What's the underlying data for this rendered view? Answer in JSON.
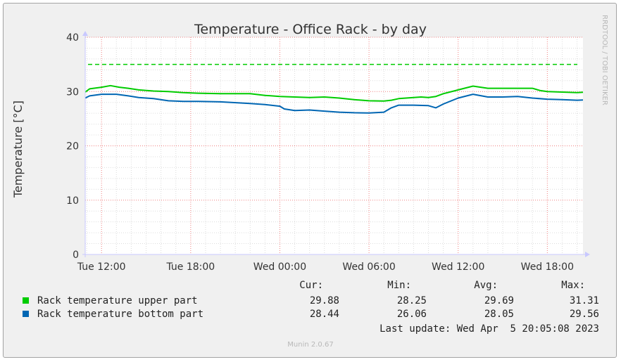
{
  "chart_data": {
    "type": "line",
    "title": "Temperature - Office Rack - by day",
    "ylabel": "Temperature [°C]",
    "xlabel": "",
    "ylim": [
      0,
      40
    ],
    "yticks": [
      0,
      10,
      20,
      30,
      40
    ],
    "xticks": [
      "Tue 12:00",
      "Tue 18:00",
      "Wed 00:00",
      "Wed 06:00",
      "Wed 12:00",
      "Wed 18:00"
    ],
    "x_hours": [
      0,
      6,
      12,
      18,
      24,
      30
    ],
    "xlim_hours": [
      -1.1,
      32.4
    ],
    "grid": true,
    "threshold": {
      "value": 35,
      "color": "#00cc00",
      "style": "dashed"
    },
    "series": [
      {
        "name": "Rack temperature upper part",
        "color": "#00cc00",
        "x": [
          -1.1,
          -0.8,
          0,
          0.6,
          1.2,
          1.8,
          2.5,
          3.5,
          4.5,
          5.5,
          6.5,
          8,
          10,
          11,
          12,
          13,
          14,
          15,
          16,
          17,
          18,
          19,
          19.5,
          20,
          21,
          21.5,
          22,
          22.5,
          23,
          24,
          25,
          26,
          27,
          28,
          29,
          29.5,
          30,
          31,
          32,
          32.4
        ],
        "values": [
          29.9,
          30.5,
          30.8,
          31.1,
          30.8,
          30.6,
          30.3,
          30.1,
          30.0,
          29.8,
          29.7,
          29.6,
          29.6,
          29.3,
          29.1,
          29.0,
          28.9,
          29.0,
          28.8,
          28.5,
          28.3,
          28.25,
          28.4,
          28.7,
          28.9,
          29.0,
          28.9,
          29.1,
          29.6,
          30.3,
          31.0,
          30.6,
          30.6,
          30.6,
          30.6,
          30.2,
          30.0,
          29.9,
          29.8,
          29.88
        ]
      },
      {
        "name": "Rack temperature bottom part",
        "color": "#0066b3",
        "x": [
          -1.1,
          -0.8,
          0,
          1,
          1.8,
          2.5,
          3.5,
          4.5,
          5.5,
          6.5,
          8,
          10,
          11,
          12,
          12.3,
          13,
          14,
          15,
          16,
          17,
          18,
          19,
          19.5,
          20,
          21,
          22,
          22.5,
          23,
          24,
          25,
          26,
          27,
          28,
          29,
          30,
          31,
          32,
          32.4
        ],
        "values": [
          28.8,
          29.2,
          29.5,
          29.5,
          29.2,
          28.9,
          28.7,
          28.3,
          28.2,
          28.2,
          28.1,
          27.8,
          27.6,
          27.3,
          26.8,
          26.5,
          26.6,
          26.4,
          26.2,
          26.1,
          26.06,
          26.2,
          27.0,
          27.5,
          27.5,
          27.4,
          27.0,
          27.7,
          28.8,
          29.5,
          29.0,
          29.0,
          29.1,
          28.8,
          28.6,
          28.5,
          28.4,
          28.44
        ]
      }
    ]
  },
  "legend": {
    "headers": [
      "Cur:",
      "Min:",
      "Avg:",
      "Max:"
    ],
    "rows": [
      {
        "label": "Rack temperature upper part",
        "color": "#00cc00",
        "cur": "29.88",
        "min": "28.25",
        "avg": "29.69",
        "max": "31.31"
      },
      {
        "label": "Rack temperature bottom part",
        "color": "#0066b3",
        "cur": "28.44",
        "min": "26.06",
        "avg": "28.05",
        "max": "29.56"
      }
    ]
  },
  "last_update": "Last update: Wed Apr  5 20:05:08 2023",
  "watermark": "RRDTOOL / TOBI OETIKER",
  "footer": "Munin 2.0.67"
}
